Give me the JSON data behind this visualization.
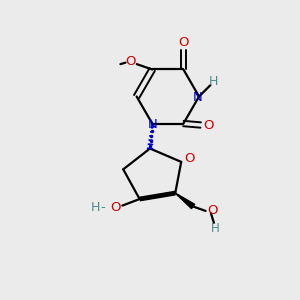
{
  "bg_color": "#ebebeb",
  "atom_colors": {
    "C": "#000000",
    "N": "#0000cc",
    "O": "#cc0000",
    "OH": "#4a8a8a",
    "H": "#4a8a8a"
  },
  "bond_color": "#000000",
  "figsize": [
    3.0,
    3.0
  ],
  "dpi": 100,
  "lw": 1.6,
  "lw_double": 1.4,
  "fs": 9.5
}
